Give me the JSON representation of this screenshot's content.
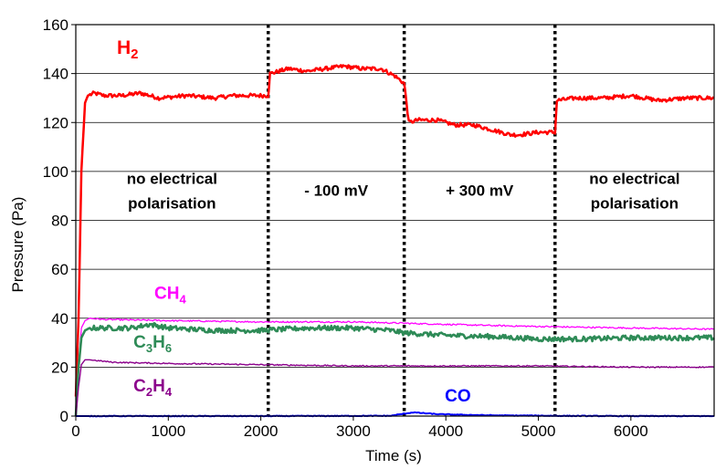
{
  "chart_data": {
    "type": "line",
    "xlabel": "Time (s)",
    "ylabel": "Pressure (Pa)",
    "xlim": [
      0,
      6900
    ],
    "ylim": [
      0,
      160
    ],
    "x_ticks": [
      0,
      1000,
      2000,
      3000,
      4000,
      5000,
      6000
    ],
    "y_ticks": [
      0,
      20,
      40,
      60,
      80,
      100,
      120,
      140,
      160
    ],
    "grid": "horizontal",
    "legend": "none",
    "phase_boundaries": [
      2080,
      3550,
      5180
    ],
    "phase_labels": [
      {
        "lines": [
          "no electrical",
          "polarisation"
        ],
        "x": 1040,
        "y": 95
      },
      {
        "lines": [
          "- 100 mV"
        ],
        "x": 2815,
        "y": 90
      },
      {
        "lines": [
          "+ 300 mV"
        ],
        "x": 4365,
        "y": 90
      },
      {
        "lines": [
          "no electrical",
          "polarisation"
        ],
        "x": 6040,
        "y": 95
      }
    ],
    "series": [
      {
        "name": "H2",
        "label_main": "H",
        "label_sub": "2",
        "color": "#ff0000",
        "width": 2.5,
        "noise": 0.8,
        "label_pos": [
          560,
          148
        ],
        "x": [
          0,
          30,
          60,
          100,
          130,
          200,
          300,
          500,
          700,
          900,
          1200,
          1500,
          1700,
          1900,
          2080,
          2100,
          2300,
          2500,
          2700,
          2900,
          3100,
          3300,
          3450,
          3550,
          3600,
          3700,
          3900,
          4100,
          4300,
          4500,
          4700,
          4800,
          5000,
          5180,
          5200,
          5400,
          5700,
          6000,
          6300,
          6600,
          6900
        ],
        "y": [
          8,
          40,
          100,
          128,
          131,
          132,
          131,
          131,
          132,
          130,
          131,
          130,
          131,
          131,
          131,
          140,
          142,
          141,
          142,
          143,
          142,
          142,
          139,
          136,
          120,
          121,
          121,
          119,
          119,
          117,
          115,
          115,
          116,
          116,
          129,
          130,
          130,
          131,
          129,
          130,
          130
        ]
      },
      {
        "name": "CH4",
        "label_main": "CH",
        "label_sub": "4",
        "color": "#ff00ff",
        "width": 1.3,
        "noise": 0.3,
        "label_pos": [
          1020,
          48
        ],
        "x": [
          0,
          30,
          60,
          100,
          150,
          300,
          1000,
          2000,
          3000,
          3500,
          4500,
          5180,
          6000,
          6900
        ],
        "y": [
          0,
          20,
          36,
          39,
          40,
          39.5,
          39,
          38.5,
          38.5,
          38,
          37,
          36.5,
          36,
          35.5
        ]
      },
      {
        "name": "C3H6",
        "label_main": "C",
        "label_sub": "3",
        "label_main2": "H",
        "label_sub2": "6",
        "color": "#2e8b57",
        "width": 2.6,
        "noise": 1.0,
        "label_pos": [
          830,
          28
        ],
        "x": [
          0,
          30,
          60,
          100,
          150,
          300,
          600,
          800,
          1000,
          1500,
          2000,
          2500,
          3000,
          3400,
          3550,
          4000,
          4500,
          5000,
          5500,
          6000,
          6500,
          6900
        ],
        "y": [
          0,
          20,
          32,
          35,
          36,
          36,
          36,
          37.5,
          36,
          35,
          35,
          36,
          36,
          35,
          34,
          33,
          32.5,
          31.5,
          31.5,
          32,
          32,
          32
        ]
      },
      {
        "name": "C2H4",
        "label_main": "C",
        "label_sub": "2",
        "label_main2": "H",
        "label_sub2": "4",
        "color": "#8b008b",
        "width": 1.4,
        "noise": 0.25,
        "label_pos": [
          830,
          10
        ],
        "x": [
          0,
          30,
          60,
          100,
          150,
          400,
          1000,
          2000,
          3000,
          4000,
          5000,
          6000,
          6900
        ],
        "y": [
          0,
          12,
          21,
          23,
          23,
          22,
          21.5,
          21,
          20.5,
          20.5,
          20.5,
          20,
          20
        ]
      },
      {
        "name": "CO",
        "label_main": "CO",
        "color": "#0000ff",
        "width": 2,
        "noise": 0.15,
        "label_pos": [
          4130,
          6
        ],
        "x": [
          0,
          2000,
          3400,
          3550,
          3650,
          3900,
          4200,
          4500,
          4800,
          5000,
          5180,
          6000,
          6900
        ],
        "y": [
          0,
          0,
          0.1,
          1,
          1.5,
          0.8,
          0.5,
          0.3,
          0.2,
          0.2,
          0.1,
          0,
          0
        ]
      }
    ]
  }
}
